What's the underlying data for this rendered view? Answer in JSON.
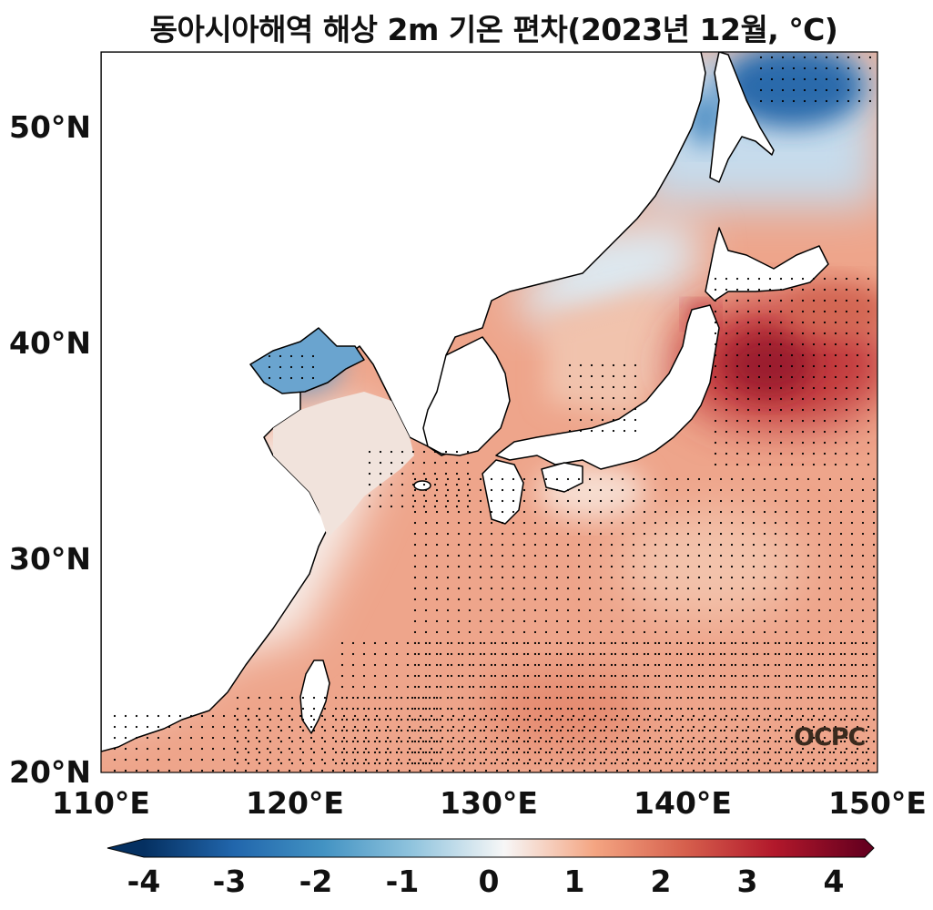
{
  "title": "동아시아해역 해상 2m 기온 편차(2023년 12월, ℃)",
  "map": {
    "lon_range": [
      110,
      150
    ],
    "lat_range": [
      20,
      53.5
    ],
    "lat_labels": [
      "50°N",
      "40°N",
      "30°N",
      "20°N"
    ],
    "lon_labels": [
      "110°E",
      "120°E",
      "130°E",
      "140°E",
      "150°E"
    ],
    "stippling": "statistically significant anomaly",
    "logo": "OCPC"
  },
  "colorbar": {
    "min": -4,
    "max": 4,
    "colormap": "RdBu_r",
    "extend": "both",
    "ticks": [
      "-4",
      "-3",
      "-2",
      "-1",
      "0",
      "1",
      "2",
      "3",
      "4"
    ]
  },
  "colors": {
    "neg4": "#053061",
    "neg2": "#4393c3",
    "zero": "#f7f7f7",
    "pos2": "#e7846f",
    "pos4": "#67001f"
  }
}
